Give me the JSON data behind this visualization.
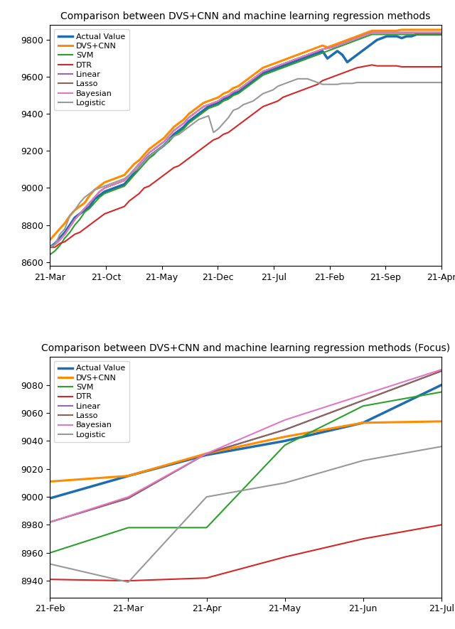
{
  "title1": "Comparison between DVS+CNN and machine learning regression methods",
  "title2": "Comparison between DVS+CNN and machine learning regression methods (Focus)",
  "legend_labels": [
    "Actual Value",
    "DVS+CNN",
    "SVM",
    "DTR",
    "Linear",
    "Lasso",
    "Bayesian",
    "Logistic"
  ],
  "colors": [
    "#1f6cb0",
    "#ff8c00",
    "#2ca02c",
    "#d62728",
    "#9467bd",
    "#8b6358",
    "#e377c2",
    "#999999"
  ],
  "linewidths": [
    2.5,
    2.2,
    1.5,
    1.5,
    1.5,
    1.5,
    1.5,
    1.5
  ],
  "plot1": {
    "xtick_labels": [
      "21-Mar",
      "21-Oct",
      "21-May",
      "21-Dec",
      "21-Jul",
      "21-Feb",
      "21-Sep",
      "21-Apr"
    ],
    "ylim": [
      8580,
      9880
    ],
    "yticks": [
      8600,
      8800,
      9000,
      9200,
      9400,
      9600,
      9800
    ],
    "n_points": 80,
    "series": {
      "Actual Value": [
        8680,
        8700,
        8730,
        8760,
        8800,
        8840,
        8860,
        8880,
        8900,
        8940,
        8960,
        8980,
        8990,
        9000,
        9010,
        9020,
        9050,
        9080,
        9110,
        9140,
        9170,
        9190,
        9210,
        9230,
        9260,
        9290,
        9310,
        9330,
        9360,
        9380,
        9400,
        9420,
        9440,
        9450,
        9460,
        9480,
        9490,
        9510,
        9520,
        9540,
        9560,
        9580,
        9600,
        9620,
        9630,
        9640,
        9650,
        9660,
        9670,
        9680,
        9690,
        9700,
        9710,
        9720,
        9730,
        9740,
        9700,
        9720,
        9740,
        9720,
        9680,
        9700,
        9720,
        9740,
        9760,
        9780,
        9800,
        9810,
        9820,
        9820,
        9820,
        9810,
        9820,
        9820,
        9830,
        9830,
        9830,
        9830,
        9830,
        9830
      ],
      "DVS+CNN": [
        8720,
        8750,
        8780,
        8810,
        8850,
        8880,
        8900,
        8920,
        8960,
        8990,
        9010,
        9030,
        9040,
        9050,
        9060,
        9070,
        9100,
        9130,
        9150,
        9180,
        9210,
        9230,
        9250,
        9270,
        9300,
        9330,
        9350,
        9370,
        9400,
        9420,
        9440,
        9460,
        9470,
        9480,
        9490,
        9510,
        9520,
        9540,
        9550,
        9570,
        9590,
        9610,
        9630,
        9650,
        9660,
        9670,
        9680,
        9690,
        9700,
        9710,
        9720,
        9730,
        9740,
        9750,
        9760,
        9770,
        9760,
        9770,
        9780,
        9790,
        9800,
        9810,
        9820,
        9830,
        9840,
        9850,
        9850,
        9850,
        9850,
        9850,
        9850,
        9855,
        9855,
        9855,
        9855,
        9855,
        9855,
        9855,
        9855,
        9855
      ],
      "SVM": [
        8640,
        8660,
        8690,
        8730,
        8760,
        8800,
        8830,
        8870,
        8890,
        8920,
        8950,
        8970,
        8980,
        8990,
        9000,
        9010,
        9040,
        9070,
        9100,
        9130,
        9160,
        9180,
        9210,
        9230,
        9250,
        9280,
        9300,
        9320,
        9350,
        9370,
        9390,
        9410,
        9430,
        9440,
        9450,
        9470,
        9480,
        9500,
        9510,
        9530,
        9550,
        9570,
        9590,
        9610,
        9620,
        9630,
        9640,
        9650,
        9660,
        9670,
        9680,
        9690,
        9700,
        9710,
        9720,
        9730,
        9740,
        9750,
        9760,
        9770,
        9780,
        9790,
        9800,
        9810,
        9820,
        9830,
        9830,
        9830,
        9830,
        9830,
        9830,
        9830,
        9830,
        9830,
        9830,
        9830,
        9830,
        9830,
        9830,
        9830
      ],
      "DTR": [
        8680,
        8680,
        8700,
        8710,
        8730,
        8750,
        8760,
        8780,
        8800,
        8820,
        8840,
        8860,
        8870,
        8880,
        8890,
        8900,
        8930,
        8950,
        8970,
        9000,
        9010,
        9030,
        9050,
        9070,
        9090,
        9110,
        9120,
        9140,
        9160,
        9180,
        9200,
        9220,
        9240,
        9260,
        9270,
        9290,
        9300,
        9320,
        9340,
        9360,
        9380,
        9400,
        9420,
        9440,
        9450,
        9460,
        9470,
        9490,
        9500,
        9510,
        9520,
        9530,
        9540,
        9550,
        9560,
        9580,
        9590,
        9600,
        9610,
        9620,
        9630,
        9640,
        9650,
        9655,
        9660,
        9665,
        9660,
        9660,
        9660,
        9660,
        9660,
        9655,
        9655,
        9655,
        9655,
        9655,
        9655,
        9655,
        9655,
        9655
      ],
      "Linear": [
        8680,
        8695,
        8720,
        8750,
        8790,
        8830,
        8860,
        8890,
        8920,
        8950,
        8980,
        9000,
        9010,
        9020,
        9030,
        9040,
        9070,
        9100,
        9130,
        9160,
        9190,
        9210,
        9230,
        9250,
        9280,
        9310,
        9330,
        9350,
        9380,
        9400,
        9420,
        9440,
        9450,
        9460,
        9470,
        9490,
        9500,
        9520,
        9530,
        9550,
        9570,
        9590,
        9610,
        9630,
        9640,
        9650,
        9660,
        9670,
        9680,
        9690,
        9700,
        9710,
        9720,
        9730,
        9740,
        9750,
        9755,
        9760,
        9770,
        9780,
        9790,
        9800,
        9810,
        9820,
        9830,
        9840,
        9840,
        9840,
        9840,
        9840,
        9840,
        9840,
        9840,
        9840,
        9840,
        9840,
        9840,
        9840,
        9840,
        9840
      ],
      "Lasso": [
        8680,
        8695,
        8720,
        8750,
        8790,
        8830,
        8860,
        8890,
        8920,
        8950,
        8980,
        9000,
        9010,
        9020,
        9030,
        9040,
        9070,
        9100,
        9130,
        9160,
        9190,
        9210,
        9230,
        9250,
        9280,
        9310,
        9330,
        9350,
        9380,
        9400,
        9420,
        9440,
        9450,
        9460,
        9470,
        9490,
        9500,
        9520,
        9530,
        9550,
        9570,
        9590,
        9610,
        9630,
        9640,
        9650,
        9660,
        9670,
        9680,
        9690,
        9700,
        9710,
        9720,
        9730,
        9740,
        9750,
        9755,
        9760,
        9770,
        9780,
        9790,
        9800,
        9810,
        9820,
        9830,
        9840,
        9840,
        9840,
        9840,
        9840,
        9840,
        9840,
        9840,
        9840,
        9840,
        9840,
        9840,
        9840,
        9840,
        9840
      ],
      "Bayesian": [
        8680,
        8695,
        8720,
        8750,
        8790,
        8830,
        8860,
        8890,
        8920,
        8950,
        8980,
        9000,
        9010,
        9020,
        9030,
        9040,
        9070,
        9100,
        9130,
        9160,
        9190,
        9210,
        9230,
        9250,
        9280,
        9310,
        9330,
        9350,
        9380,
        9400,
        9420,
        9440,
        9450,
        9460,
        9470,
        9490,
        9500,
        9520,
        9530,
        9550,
        9570,
        9590,
        9610,
        9630,
        9640,
        9650,
        9660,
        9670,
        9680,
        9690,
        9700,
        9710,
        9720,
        9730,
        9740,
        9750,
        9755,
        9760,
        9770,
        9780,
        9790,
        9800,
        9810,
        9820,
        9830,
        9840,
        9840,
        9840,
        9840,
        9840,
        9840,
        9840,
        9840,
        9840,
        9840,
        9840,
        9840,
        9840,
        9840,
        9840
      ],
      "Logistic": [
        8680,
        8695,
        8750,
        8780,
        8850,
        8880,
        8920,
        8950,
        8970,
        8990,
        9000,
        9010,
        9020,
        9030,
        9040,
        9050,
        9070,
        9090,
        9110,
        9140,
        9170,
        9190,
        9210,
        9230,
        9260,
        9280,
        9290,
        9310,
        9330,
        9350,
        9370,
        9380,
        9390,
        9300,
        9320,
        9350,
        9380,
        9420,
        9430,
        9450,
        9460,
        9470,
        9490,
        9510,
        9520,
        9530,
        9550,
        9560,
        9570,
        9580,
        9590,
        9590,
        9590,
        9580,
        9570,
        9560,
        9560,
        9560,
        9560,
        9565,
        9565,
        9565,
        9570,
        9570,
        9570,
        9570,
        9570,
        9570,
        9570,
        9570,
        9570,
        9570,
        9570,
        9570,
        9570,
        9570,
        9570,
        9570,
        9570,
        9570
      ]
    }
  },
  "plot2": {
    "xtick_labels": [
      "21-Feb",
      "21-Mar",
      "21-Apr",
      "21-May",
      "21-Jun",
      "21-Jul"
    ],
    "ylim": [
      8928,
      9100
    ],
    "yticks": [
      8940,
      8960,
      8980,
      9000,
      9020,
      9040,
      9060,
      9080
    ],
    "series": {
      "Actual Value": [
        8999,
        9015,
        9030,
        9040,
        9053,
        9080
      ],
      "DVS+CNN": [
        9011,
        9015,
        9031,
        9043,
        9053,
        9054
      ],
      "SVM": [
        8960,
        8978,
        8978,
        9037,
        9065,
        9075
      ],
      "DTR": [
        8941,
        8940,
        8942,
        8957,
        8970,
        8980
      ],
      "Linear": [
        8982,
        8999,
        9031,
        9048,
        9069,
        9090
      ],
      "Lasso": [
        8982,
        8999,
        9031,
        9048,
        9069,
        9090
      ],
      "Bayesian": [
        8982,
        9000,
        9031,
        9055,
        9073,
        9091
      ],
      "Logistic": [
        8952,
        8939,
        9000,
        9010,
        9026,
        9036
      ]
    }
  }
}
